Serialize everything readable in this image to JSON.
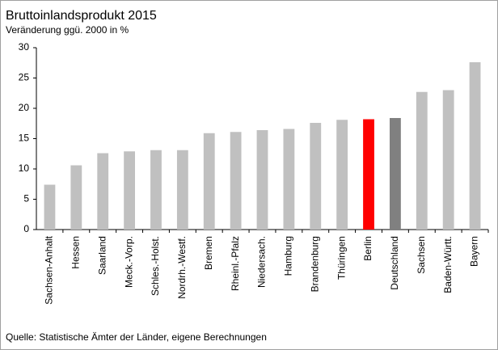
{
  "chart_data": {
    "type": "bar",
    "title": "Bruttoinlandsprodukt  2015",
    "subtitle": "Veränderung ggü. 2000 in %",
    "source": "Quelle: Statistische Ämter der Länder,  eigene Berechnungen",
    "categories": [
      "Sachsen-Anhalt",
      "Hessen",
      "Saarland",
      "Meck.-Vorp.",
      "Schles.-Holst.",
      "Nordrh.-Westf.",
      "Bremen",
      "Rheinl.-Pfalz",
      "Niedersach.",
      "Hamburg",
      "Brandenburg",
      "Thüringen",
      "Berlin",
      "Deutschland",
      "Sachsen",
      "Baden-Württ.",
      "Bayern"
    ],
    "values": [
      7.4,
      10.6,
      12.6,
      12.9,
      13.1,
      13.1,
      15.9,
      16.1,
      16.4,
      16.6,
      17.6,
      18.1,
      18.2,
      18.4,
      22.7,
      23.0,
      27.6
    ],
    "colors": [
      "#c0c0c0",
      "#c0c0c0",
      "#c0c0c0",
      "#c0c0c0",
      "#c0c0c0",
      "#c0c0c0",
      "#c0c0c0",
      "#c0c0c0",
      "#c0c0c0",
      "#c0c0c0",
      "#c0c0c0",
      "#c0c0c0",
      "#ff0000",
      "#808080",
      "#c0c0c0",
      "#c0c0c0",
      "#c0c0c0"
    ],
    "ylim": [
      0,
      30
    ],
    "yticks": [
      0,
      5,
      10,
      15,
      20,
      25,
      30
    ],
    "grid": false
  }
}
